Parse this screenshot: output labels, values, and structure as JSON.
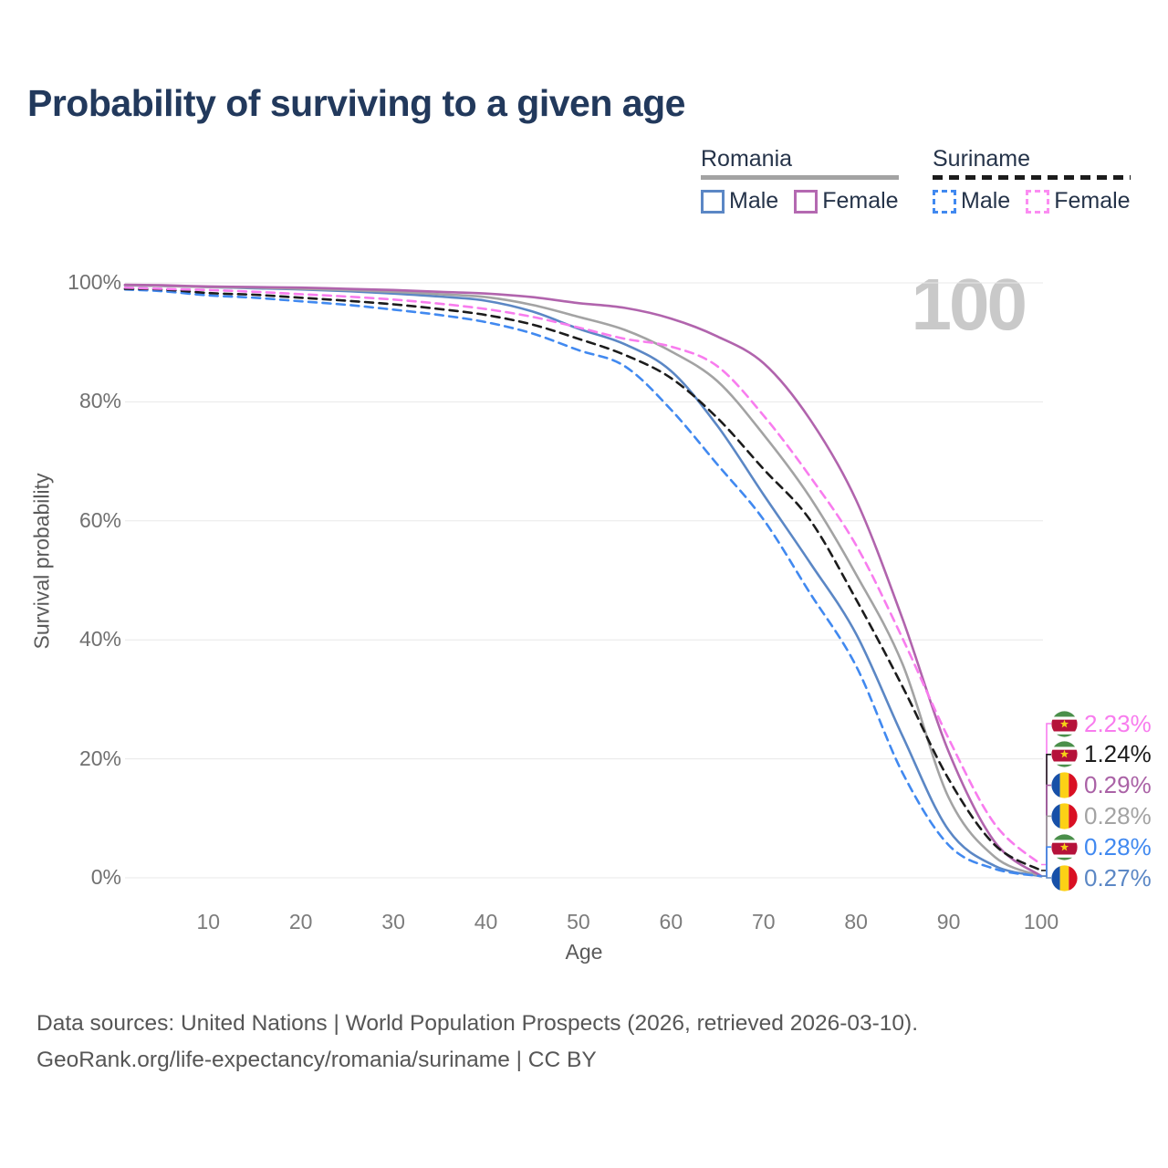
{
  "title": "Probability of surviving to a given age",
  "watermark": "100",
  "legend": {
    "groups": [
      {
        "name": "Romania",
        "line_style": "solid",
        "line_color": "#a3a3a3",
        "items": [
          {
            "label": "Male",
            "color": "#5b87c5",
            "dashed": false
          },
          {
            "label": "Female",
            "color": "#b469b1",
            "dashed": false
          }
        ]
      },
      {
        "name": "Suriname",
        "line_style": "dashed",
        "line_color": "#1c1c1c",
        "items": [
          {
            "label": "Male",
            "color": "#4189f0",
            "dashed": true
          },
          {
            "label": "Female",
            "color": "#fb8df2",
            "dashed": true
          }
        ]
      }
    ]
  },
  "axes": {
    "y_title": "Survival probability",
    "x_title": "Age",
    "y_ticks": [
      {
        "label": "100%",
        "value": 100
      },
      {
        "label": "80%",
        "value": 80
      },
      {
        "label": "60%",
        "value": 60
      },
      {
        "label": "40%",
        "value": 40
      },
      {
        "label": "20%",
        "value": 20
      },
      {
        "label": "0%",
        "value": 0
      }
    ],
    "x_ticks": [
      {
        "label": "10",
        "value": 10
      },
      {
        "label": "20",
        "value": 20
      },
      {
        "label": "30",
        "value": 30
      },
      {
        "label": "40",
        "value": 40
      },
      {
        "label": "50",
        "value": 50
      },
      {
        "label": "60",
        "value": 60
      },
      {
        "label": "70",
        "value": 70
      },
      {
        "label": "80",
        "value": 80
      },
      {
        "label": "90",
        "value": 90
      },
      {
        "label": "100",
        "value": 100
      }
    ]
  },
  "chart_data": {
    "type": "line",
    "title": "Probability of surviving to a given age",
    "xlabel": "Age",
    "ylabel": "Survival probability",
    "x_range": [
      1,
      100
    ],
    "y_range_percent": [
      0,
      100
    ],
    "grid": "horizontal",
    "legend_position": "top-right",
    "hovered_age": 100,
    "x": [
      1,
      5,
      10,
      15,
      20,
      25,
      30,
      35,
      40,
      45,
      50,
      55,
      60,
      65,
      70,
      75,
      80,
      85,
      90,
      95,
      100
    ],
    "series": [
      {
        "name": "Romania Male",
        "country": "Romania",
        "sex": "male",
        "color": "#5b87c5",
        "dash": false,
        "end_label": "0.27%",
        "values": [
          99.6,
          99.5,
          99.3,
          99.1,
          98.9,
          98.6,
          98.2,
          97.7,
          97.0,
          95.2,
          92.3,
          89.7,
          85.2,
          76.0,
          64.4,
          53.0,
          41.0,
          23.9,
          8.0,
          2.0,
          0.27
        ]
      },
      {
        "name": "Romania Female",
        "country": "Romania",
        "sex": "female",
        "color": "#b164ad",
        "dash": false,
        "end_label": "0.29%",
        "values": [
          99.7,
          99.6,
          99.4,
          99.3,
          99.2,
          99.0,
          98.8,
          98.5,
          98.2,
          97.6,
          96.6,
          95.8,
          94.0,
          91.0,
          86.5,
          77.1,
          63.5,
          43.6,
          21.2,
          6.0,
          0.29
        ]
      },
      {
        "name": "Romania (both sexes)",
        "country": "Romania",
        "sex": "total",
        "color": "#a3a3a3",
        "dash": false,
        "end_label": "0.28%",
        "values": [
          99.6,
          99.5,
          99.3,
          99.2,
          99.0,
          98.8,
          98.5,
          98.1,
          97.6,
          96.3,
          94.3,
          92.1,
          88.5,
          83.5,
          74.5,
          64.0,
          51.0,
          36.0,
          13.5,
          3.5,
          0.28
        ]
      },
      {
        "name": "Suriname Male",
        "country": "Suriname",
        "sex": "male",
        "color": "#4189f0",
        "dash": true,
        "end_label": "0.28%",
        "values": [
          98.9,
          98.6,
          97.9,
          97.5,
          96.9,
          96.3,
          95.5,
          94.6,
          93.4,
          91.5,
          88.7,
          86.0,
          78.7,
          69.5,
          60.2,
          47.9,
          35.6,
          17.7,
          5.5,
          1.5,
          0.28
        ]
      },
      {
        "name": "Suriname (both sexes)",
        "country": "Suriname",
        "sex": "total",
        "color": "#1c1c1c",
        "dash": true,
        "end_label": "1.24%",
        "values": [
          99.0,
          98.9,
          98.3,
          98.0,
          97.5,
          97.0,
          96.4,
          95.6,
          94.6,
          93.0,
          90.6,
          87.9,
          84.0,
          77.3,
          68.7,
          60.2,
          46.8,
          32.2,
          16.6,
          5.5,
          1.24
        ]
      },
      {
        "name": "Suriname Female",
        "country": "Suriname",
        "sex": "female",
        "color": "#f87cee",
        "dash": true,
        "end_label": "2.23%",
        "values": [
          99.2,
          99.0,
          98.8,
          98.5,
          98.1,
          97.7,
          97.2,
          96.5,
          95.6,
          94.3,
          92.5,
          90.6,
          89.3,
          86.0,
          77.7,
          67.5,
          55.9,
          40.3,
          23.4,
          9.0,
          2.23
        ]
      }
    ]
  },
  "end_labels": [
    {
      "value": "2.23%",
      "series": "Suriname Female",
      "flag": "suriname",
      "color": "#f87cee"
    },
    {
      "value": "1.24%",
      "series": "Suriname (both sexes)",
      "flag": "suriname",
      "color": "#1c1c1c"
    },
    {
      "value": "0.29%",
      "series": "Romania Female",
      "flag": "romania",
      "color": "#aa62a6"
    },
    {
      "value": "0.28%",
      "series": "Romania (both sexes)",
      "flag": "romania",
      "color": "#a3a3a3"
    },
    {
      "value": "0.28%",
      "series": "Suriname Male",
      "flag": "suriname",
      "color": "#4189f0"
    },
    {
      "value": "0.27%",
      "series": "Romania Male",
      "flag": "romania",
      "color": "#5b87c5"
    }
  ],
  "flag_colors": {
    "romania": {
      "blue": "#1750a8",
      "yellow": "#fcd116",
      "red": "#d91023"
    },
    "suriname": {
      "green": "#4a8f4a",
      "white": "#ffffff",
      "red": "#b5123a",
      "star": "#f5d216"
    }
  },
  "footer": {
    "line1": "Data sources: United Nations | World Population Prospects (2026, retrieved 2026-03-10).",
    "line2": "GeoRank.org/life-expectancy/romania/suriname | CC BY"
  }
}
